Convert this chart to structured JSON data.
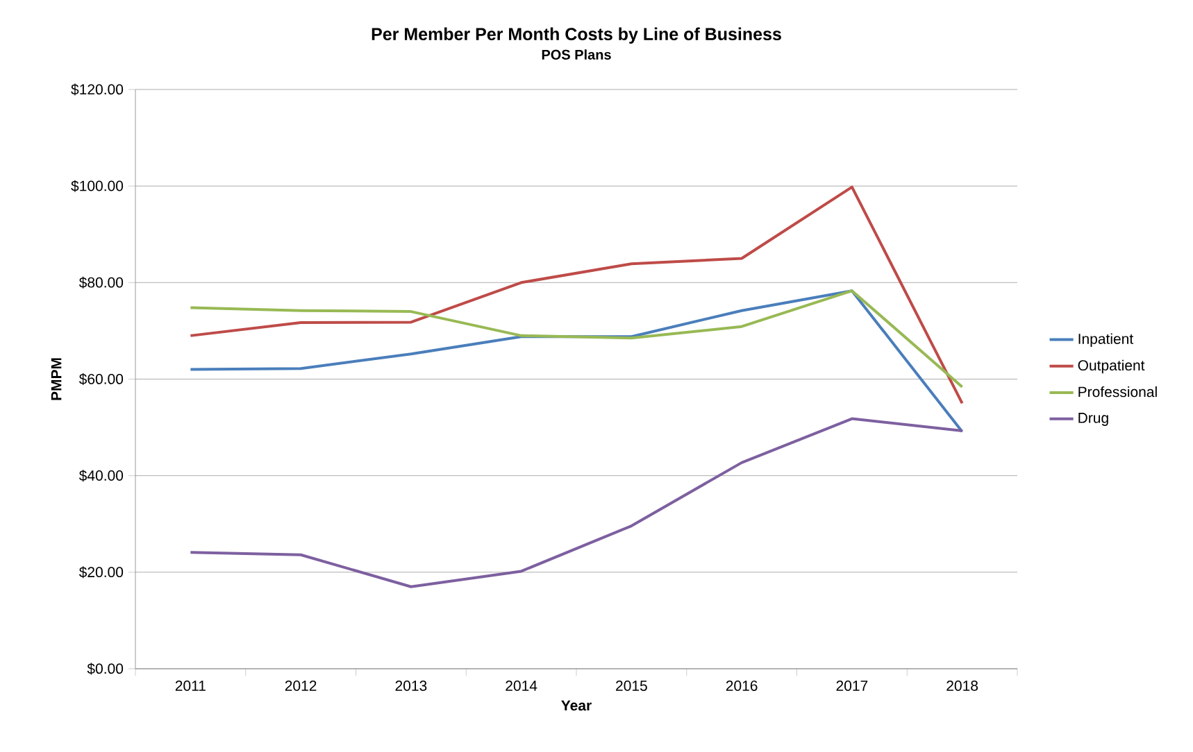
{
  "chart_data": {
    "type": "line",
    "title": "Per Member Per Month Costs by Line of Business",
    "subtitle": "POS Plans",
    "xlabel": "Year",
    "ylabel": "PMPM",
    "categories": [
      "2011",
      "2012",
      "2013",
      "2014",
      "2015",
      "2016",
      "2017",
      "2018"
    ],
    "series": [
      {
        "name": "Inpatient",
        "color": "#4a7ebb",
        "values": [
          62.0,
          62.2,
          65.2,
          68.8,
          68.8,
          74.2,
          78.3,
          49.1
        ]
      },
      {
        "name": "Outpatient",
        "color": "#be4b48",
        "values": [
          69.0,
          71.7,
          71.8,
          80.0,
          83.9,
          85.0,
          99.8,
          55.0
        ]
      },
      {
        "name": "Professional",
        "color": "#98b954",
        "values": [
          74.8,
          74.2,
          74.0,
          69.0,
          68.5,
          70.9,
          78.3,
          58.4
        ]
      },
      {
        "name": "Drug",
        "color": "#7d60a0",
        "values": [
          24.1,
          23.6,
          17.0,
          20.2,
          29.6,
          42.7,
          51.8,
          49.3
        ]
      }
    ],
    "ylim": [
      0,
      120
    ],
    "yticks": [
      {
        "value": 0,
        "label": "$0.00"
      },
      {
        "value": 20,
        "label": "$20.00"
      },
      {
        "value": 40,
        "label": "$40.00"
      },
      {
        "value": 60,
        "label": "$60.00"
      },
      {
        "value": 80,
        "label": "$80.00"
      },
      {
        "value": 100,
        "label": "$100.00"
      },
      {
        "value": 120,
        "label": "$120.00"
      }
    ],
    "grid": "y",
    "legend": "right",
    "marker": "none",
    "line_style": "solid"
  }
}
